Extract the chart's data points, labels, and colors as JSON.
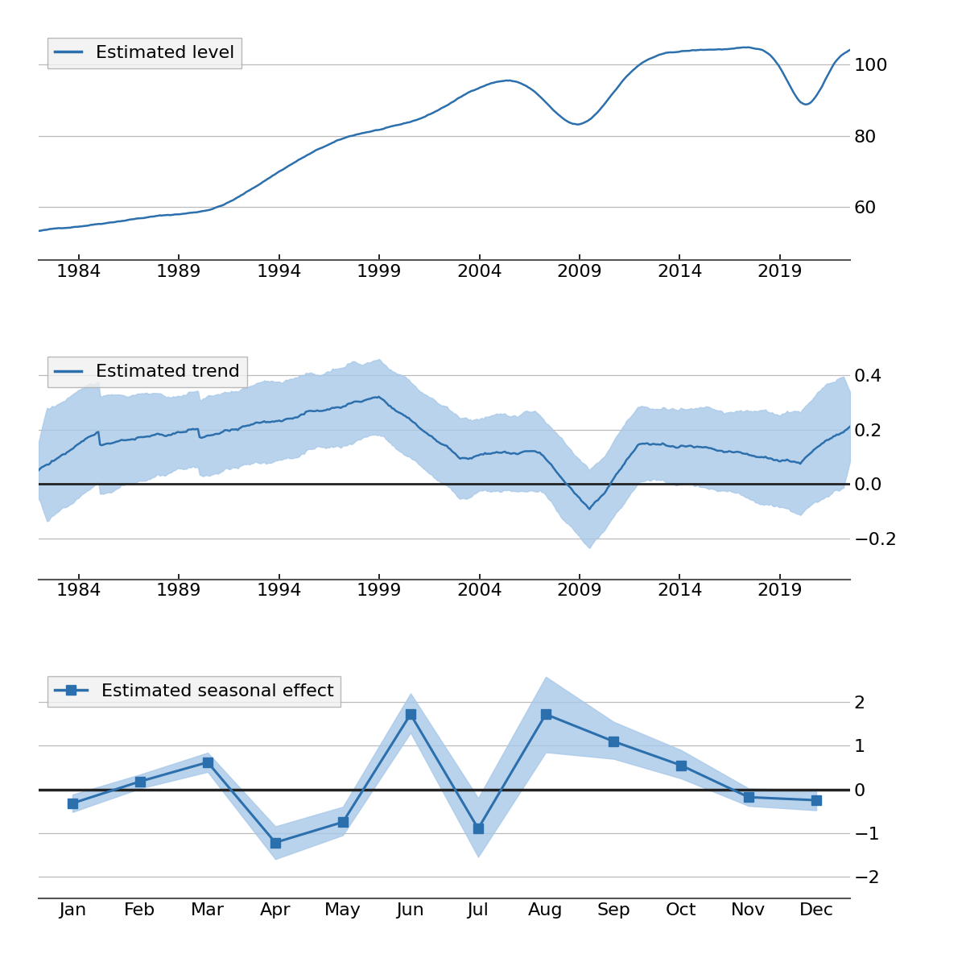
{
  "line_color": "#2c6fad",
  "fill_color": "#a8c8e8",
  "zero_line_color": "#222222",
  "grid_color": "#bbbbbb",
  "legend_facecolor": "#f0f0f0",
  "legend_edgecolor": "#aaaaaa",
  "level_yticks": [
    60,
    80,
    100
  ],
  "level_ylim": [
    45,
    110
  ],
  "level_xticks": [
    1984,
    1989,
    1994,
    1999,
    2004,
    2009,
    2014,
    2019
  ],
  "level_label": "Estimated level",
  "trend_yticks": [
    -0.2,
    0.0,
    0.2,
    0.4
  ],
  "trend_ylim": [
    -0.35,
    0.5
  ],
  "trend_xticks": [
    1984,
    1989,
    1994,
    1999,
    2004,
    2009,
    2014,
    2019
  ],
  "trend_label": "Estimated trend",
  "seasonal_values": [
    -0.32,
    0.18,
    0.62,
    -1.22,
    -0.75,
    1.72,
    -0.9,
    1.72,
    1.1,
    0.55,
    -0.18,
    -0.25
  ],
  "seasonal_lower": [
    -0.52,
    0.02,
    0.4,
    -1.6,
    -1.05,
    1.3,
    -1.55,
    0.85,
    0.7,
    0.25,
    -0.38,
    -0.48
  ],
  "seasonal_upper": [
    -0.12,
    0.34,
    0.84,
    -0.85,
    -0.4,
    2.2,
    -0.2,
    2.58,
    1.55,
    0.9,
    0.02,
    -0.02
  ],
  "seasonal_yticks": [
    -2,
    -1,
    0,
    1,
    2
  ],
  "seasonal_ylim": [
    -2.5,
    2.8
  ],
  "seasonal_months": [
    "Jan",
    "Feb",
    "Mar",
    "Apr",
    "May",
    "Jun",
    "Jul",
    "Aug",
    "Sep",
    "Oct",
    "Nov",
    "Dec"
  ],
  "seasonal_label": "Estimated seasonal effect",
  "tick_fontsize": 16,
  "legend_fontsize": 16
}
